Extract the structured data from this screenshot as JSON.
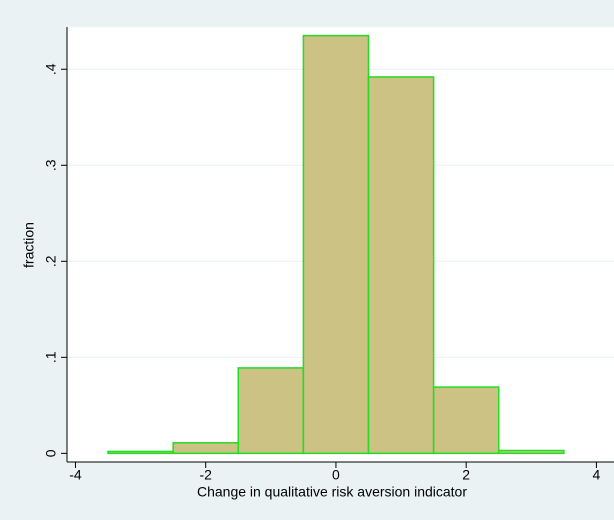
{
  "chart_data": {
    "type": "histogram",
    "bins": [
      -3.5,
      -2.5,
      -1.5,
      -0.5,
      0.5,
      1.5,
      2.5,
      3.5
    ],
    "values": [
      0.002,
      0.011,
      0.089,
      0.435,
      0.392,
      0.069,
      0.003
    ],
    "color": "#cbc283",
    "edge_color": "#22dd22",
    "xlabel": "Change in qualitative risk aversion indicator",
    "ylabel": "fraction",
    "xlim": [
      -4.13,
      4.27
    ],
    "xticks": [
      -4,
      -2,
      0,
      2,
      4
    ],
    "ylim": [
      -0.009,
      0.444
    ],
    "yticks": [
      0,
      {
        "value": 0.1,
        "label": ".1"
      },
      {
        "value": 0.2,
        "label": ".2"
      },
      {
        "value": 0.3,
        "label": ".3"
      },
      {
        "value": 0.4,
        "label": ".4"
      }
    ],
    "grid": true
  }
}
